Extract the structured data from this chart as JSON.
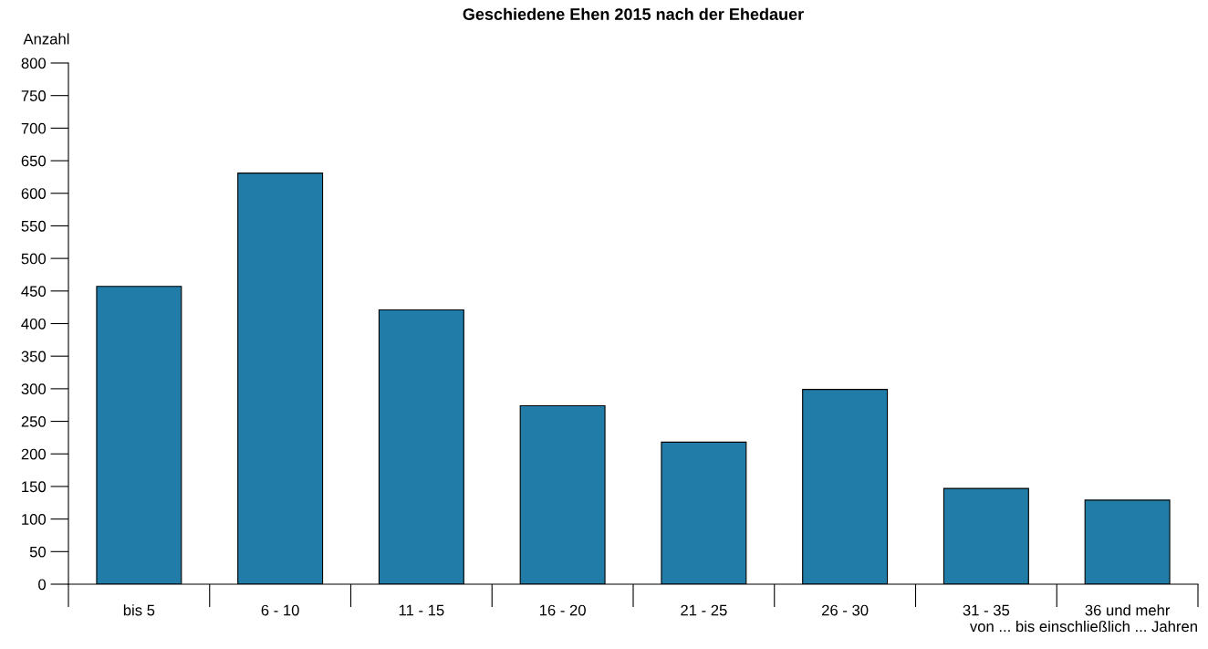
{
  "chart_data": {
    "type": "bar",
    "title": "Geschiedene Ehen 2015 nach der Ehedauer",
    "ylabel": "Anzahl",
    "xlabel": "von ... bis einschließlich ... Jahren",
    "categories": [
      "bis 5",
      "6 - 10",
      "11 - 15",
      "16 - 20",
      "21 - 25",
      "26 - 30",
      "31 - 35",
      "36 und mehr"
    ],
    "values": [
      457,
      631,
      421,
      274,
      218,
      299,
      147,
      129
    ],
    "color": "#217ca8",
    "ylim": [
      0,
      800
    ],
    "yticks": [
      0,
      50,
      100,
      150,
      200,
      250,
      300,
      350,
      400,
      450,
      500,
      550,
      600,
      650,
      700,
      750,
      800
    ],
    "grid": false,
    "legend": false
  }
}
